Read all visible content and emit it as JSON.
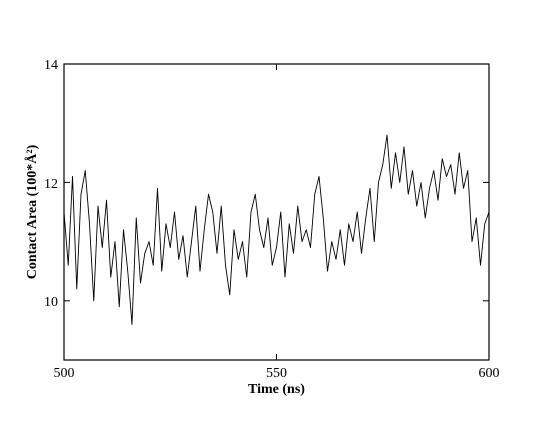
{
  "chart_data": {
    "type": "line",
    "title": "",
    "xlabel": "Time (ns)",
    "ylabel": "Contact Area (100*Å²)",
    "xlim": [
      500,
      600
    ],
    "ylim": [
      9,
      14
    ],
    "x_ticks": [
      "500",
      "550",
      "600"
    ],
    "y_ticks": [
      "10",
      "12",
      "14"
    ],
    "x_tick_values": [
      500,
      550,
      600
    ],
    "y_tick_values": [
      10,
      12,
      14
    ],
    "grid": false,
    "line_color": "#000000",
    "series": [
      {
        "x": [
          500,
          501,
          502,
          503,
          504,
          505,
          506,
          507,
          508,
          509,
          510,
          511,
          512,
          513,
          514,
          515,
          516,
          517,
          518,
          519,
          520,
          521,
          522,
          523,
          524,
          525,
          526,
          527,
          528,
          529,
          530,
          531,
          532,
          533,
          534,
          535,
          536,
          537,
          538,
          539,
          540,
          541,
          542,
          543,
          544,
          545,
          546,
          547,
          548,
          549,
          550,
          551,
          552,
          553,
          554,
          555,
          556,
          557,
          558,
          559,
          560,
          561,
          562,
          563,
          564,
          565,
          566,
          567,
          568,
          569,
          570,
          571,
          572,
          573,
          574,
          575,
          576,
          577,
          578,
          579,
          580,
          581,
          582,
          583,
          584,
          585,
          586,
          587,
          588,
          589,
          590,
          591,
          592,
          593,
          594,
          595,
          596,
          597,
          598,
          599,
          600
        ],
        "values": [
          11.5,
          10.6,
          12.1,
          10.2,
          11.8,
          12.2,
          11.3,
          10.0,
          11.6,
          10.9,
          11.7,
          10.4,
          11.0,
          9.9,
          11.2,
          10.5,
          9.6,
          11.4,
          10.3,
          10.8,
          11.0,
          10.6,
          11.9,
          10.5,
          11.3,
          10.9,
          11.5,
          10.7,
          11.1,
          10.4,
          11.0,
          11.6,
          10.5,
          11.2,
          11.8,
          11.5,
          10.8,
          11.6,
          10.6,
          10.1,
          11.2,
          10.7,
          11.0,
          10.4,
          11.5,
          11.8,
          11.2,
          10.9,
          11.4,
          10.6,
          10.9,
          11.5,
          10.4,
          11.3,
          10.8,
          11.6,
          11.0,
          11.2,
          10.9,
          11.8,
          12.1,
          11.4,
          10.5,
          11.0,
          10.7,
          11.2,
          10.6,
          11.3,
          11.0,
          11.5,
          10.8,
          11.4,
          11.9,
          11.0,
          12.0,
          12.3,
          12.8,
          11.9,
          12.5,
          12.0,
          12.6,
          11.8,
          12.2,
          11.6,
          12.0,
          11.4,
          11.9,
          12.2,
          11.7,
          12.4,
          12.1,
          12.3,
          11.8,
          12.5,
          11.9,
          12.2,
          11.0,
          11.4,
          10.6,
          11.3,
          11.5
        ]
      }
    ]
  }
}
